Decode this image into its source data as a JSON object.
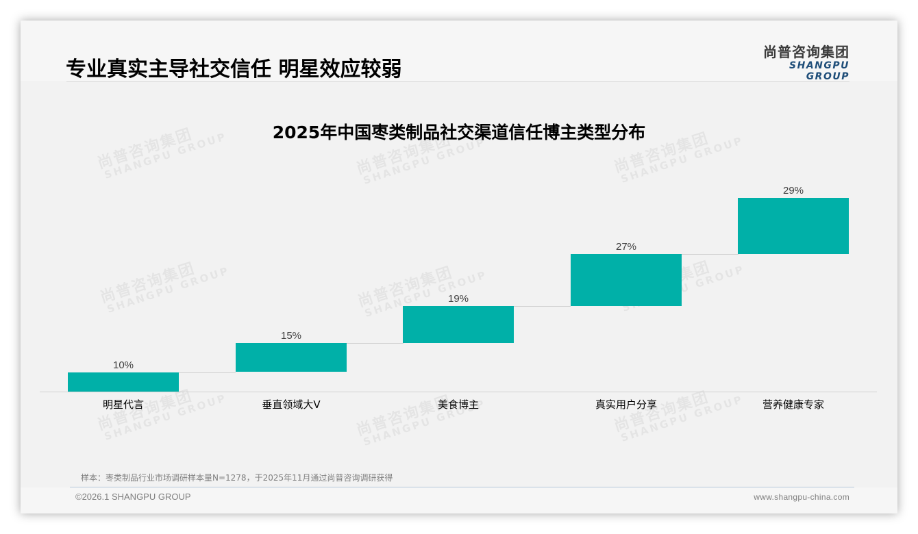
{
  "header": {
    "title": "专业真实主导社交信任 明星效应较弱",
    "logo_cn": "尚普咨询集团",
    "logo_en": "SHANGPU GROUP"
  },
  "watermark": {
    "cn": "尚普咨询集团",
    "en": "SHANGPU GROUP"
  },
  "colors": {
    "bar": "#00b0a8",
    "logo_en": "#1f4e79",
    "background": "#f2f2f2"
  },
  "chart_data": {
    "type": "bar",
    "subtype": "waterfall",
    "title": "2025年中国枣类制品社交渠道信任博主类型分布",
    "categories": [
      "明星代言",
      "垂直领域大V",
      "美食博主",
      "真实用户分享",
      "营养健康专家"
    ],
    "values": [
      10,
      15,
      19,
      27,
      29
    ],
    "labels": [
      "10%",
      "15%",
      "19%",
      "27%",
      "29%"
    ],
    "cumulative_start": [
      0,
      10,
      25,
      44,
      71
    ],
    "cumulative_end": [
      10,
      25,
      44,
      71,
      100
    ],
    "unit": "%",
    "xlabel": "",
    "ylabel": "",
    "ylim": [
      0,
      100
    ],
    "grid": false,
    "legend": "none",
    "y_axis_visible": false,
    "connector_lines": true,
    "bar_color": "#00b0a8"
  },
  "footer": {
    "source_note": "样本：枣类制品行业市场调研样本量N=1278，于2025年11月通过尚普咨询调研获得",
    "copyright": "©2026.1 SHANGPU GROUP",
    "website": "www.shangpu-china.com"
  }
}
